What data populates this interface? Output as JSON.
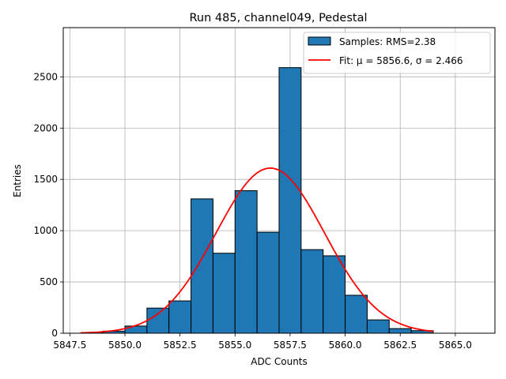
{
  "chart_data": {
    "type": "bar",
    "title": "Run 485, channel049, Pedestal",
    "xlabel": "ADC Counts",
    "ylabel": "Entries",
    "xlim": [
      5847.2,
      5866.8
    ],
    "ylim": [
      0,
      2980
    ],
    "grid": true,
    "legend_placement": "top-right",
    "x_ticks": [
      5847.5,
      5850.0,
      5852.5,
      5855.0,
      5857.5,
      5860.0,
      5862.5,
      5865.0
    ],
    "x_tick_labels": [
      "5847.5",
      "5850.0",
      "5852.5",
      "5855.0",
      "5857.5",
      "5860.0",
      "5862.5",
      "5865.0"
    ],
    "y_ticks": [
      0,
      500,
      1000,
      1500,
      2000,
      2500
    ],
    "y_tick_labels": [
      "0",
      "500",
      "1000",
      "1500",
      "2000",
      "2500"
    ],
    "histogram": {
      "name": "Samples: RMS=2.38",
      "color": "#1f77b4",
      "edge_color": "#000000",
      "bin_edges": [
        5848,
        5849,
        5850,
        5851,
        5852,
        5853,
        5854,
        5855,
        5856,
        5857,
        5858,
        5859,
        5860,
        5861,
        5862,
        5863,
        5864
      ],
      "values": [
        5,
        20,
        70,
        245,
        315,
        1310,
        780,
        1390,
        985,
        2590,
        815,
        755,
        370,
        130,
        45,
        25
      ]
    },
    "fit": {
      "name": "Fit: μ = 5856.6, σ = 2.466",
      "color": "#ff0000",
      "mu": 5856.6,
      "sigma": 2.466,
      "amplitude": 1610,
      "x_range": [
        5848,
        5864
      ]
    }
  }
}
